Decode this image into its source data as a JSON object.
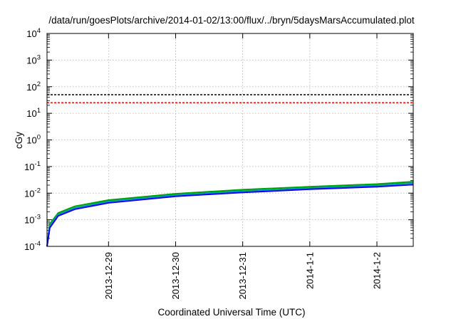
{
  "chart_data": {
    "type": "line",
    "title": "/data/run/goesPlots/archive/2014-01-02/13:00/flux/../bryn/5daysMarsAccumulated.plot",
    "xlabel": "Coordinated Universal Time (UTC)",
    "ylabel": "cGy",
    "yscale": "log",
    "ylim": [
      0.0001,
      10000
    ],
    "xlim": [
      "2013-12-28 02:00",
      "2014-01-02 13:00"
    ],
    "y_ticks": [
      {
        "base": "10",
        "exp": "4"
      },
      {
        "base": "10",
        "exp": "3"
      },
      {
        "base": "10",
        "exp": "2"
      },
      {
        "base": "10",
        "exp": "1"
      },
      {
        "base": "10",
        "exp": "0"
      },
      {
        "base": "10",
        "exp": "-1"
      },
      {
        "base": "10",
        "exp": "-2"
      },
      {
        "base": "10",
        "exp": "-3"
      },
      {
        "base": "10",
        "exp": "-4"
      }
    ],
    "x_ticks": [
      "2013-12-29",
      "2013-12-30",
      "2013-12-31",
      "2014-1-1",
      "2014-1-2"
    ],
    "grid": true,
    "reference_lines": [
      {
        "y": 50,
        "color": "#000000",
        "style": "dashed"
      },
      {
        "y": 25,
        "color": "#ff0000",
        "style": "dashed"
      }
    ],
    "x": [
      "2013-12-28 02:00",
      "2013-12-28 03:00",
      "2013-12-28 06:00",
      "2013-12-28 12:00",
      "2013-12-29 00:00",
      "2013-12-30 00:00",
      "2013-12-31 00:00",
      "2014-01-01 00:00",
      "2014-01-02 00:00",
      "2014-01-02 13:00"
    ],
    "series": [
      {
        "color": "#00a000",
        "values": [
          0.0001,
          0.0007,
          0.0018,
          0.0032,
          0.0055,
          0.0095,
          0.0135,
          0.0175,
          0.022,
          0.027
        ]
      },
      {
        "color": "#00a0a0",
        "values": [
          0.0001,
          0.0006,
          0.0016,
          0.0028,
          0.0049,
          0.0085,
          0.012,
          0.0155,
          0.0195,
          0.024
        ]
      },
      {
        "color": "#0000ff",
        "values": [
          0.0001,
          0.0005,
          0.0014,
          0.0025,
          0.0043,
          0.0076,
          0.0106,
          0.014,
          0.0175,
          0.021
        ]
      }
    ]
  }
}
